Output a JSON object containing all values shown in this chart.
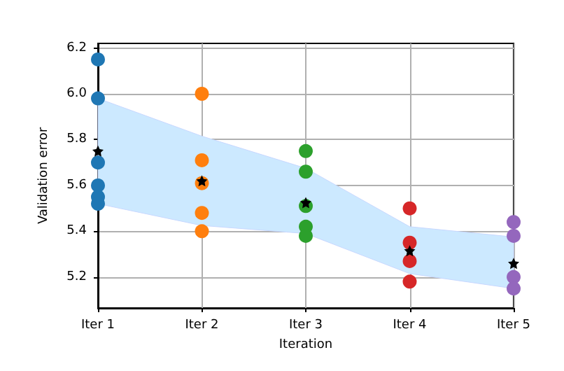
{
  "chart_data": {
    "type": "scatter",
    "xlabel": "Iteration",
    "ylabel": "Validation error",
    "categories": [
      "Iter 1",
      "Iter 2",
      "Iter 3",
      "Iter 4",
      "Iter 5"
    ],
    "ylim": [
      5.065,
      6.22
    ],
    "yticks": [
      5.2,
      5.4,
      5.6,
      5.8,
      {
        "value": 6,
        "label": "6.0"
      },
      6.2
    ],
    "grid": true,
    "marker": "circle",
    "series": [
      {
        "color": "#1f77b4",
        "x": [
          "Iter 1",
          "Iter 1",
          "Iter 1",
          "Iter 1",
          "Iter 1",
          "Iter 1"
        ],
        "values": [
          6.15,
          5.98,
          5.7,
          5.6,
          5.55,
          5.52
        ]
      },
      {
        "color": "#ff7f0e",
        "x": [
          "Iter 2",
          "Iter 2",
          "Iter 2",
          "Iter 2",
          "Iter 2",
          "Iter 2"
        ],
        "values": [
          6.0,
          5.71,
          5.61,
          null,
          5.48,
          5.4
        ]
      },
      {
        "color": "#2ca02c",
        "x": [
          "Iter 3",
          "Iter 3",
          "Iter 3",
          "Iter 3",
          "Iter 3",
          "Iter 3"
        ],
        "values": [
          5.75,
          5.66,
          5.51,
          null,
          5.42,
          5.38
        ]
      },
      {
        "color": "#d62728",
        "x": [
          "Iter 4",
          "Iter 4",
          "Iter 4",
          "Iter 4",
          "Iter 4"
        ],
        "values": [
          5.5,
          5.35,
          null,
          5.27,
          5.18
        ]
      },
      {
        "color": "#9467bd",
        "x": [
          "Iter 5",
          "Iter 5",
          "Iter 5",
          "Iter 5",
          "Iter 5"
        ],
        "values": [
          5.44,
          5.38,
          5.2,
          null,
          5.15
        ]
      },
      {
        "color": "#000000",
        "marker": "star",
        "x": [
          "Iter 1",
          "Iter 2",
          "Iter 3",
          "Iter 4",
          "Iter 5"
        ],
        "values": [
          5.75,
          5.62,
          5.525,
          5.315,
          5.26
        ],
        "lower": [
          5.52,
          5.425,
          5.39,
          5.215,
          5.15
        ],
        "upper": [
          5.98,
          5.815,
          5.675,
          5.42,
          5.375
        ]
      }
    ]
  }
}
